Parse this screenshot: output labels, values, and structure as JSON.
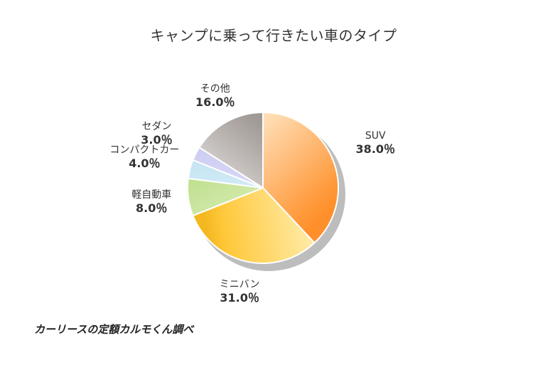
{
  "chart_data": {
    "type": "pie",
    "title": "キャンプに乗って行きたい車のタイプ",
    "slices": [
      {
        "label": "SUV",
        "value": 38.0,
        "display": "38.0％",
        "color_start": "#ffe2bd",
        "color_end": "#ff9a3c",
        "color_edge": "#ff8f2a"
      },
      {
        "label": "ミニバン",
        "value": 31.0,
        "display": "31.0％",
        "color_start": "#fff0b8",
        "color_end": "#ffc83a",
        "color_edge": "#f3b820"
      },
      {
        "label": "軽自動車",
        "value": 8.0,
        "display": "8.0％",
        "color_start": "#e4f3c6",
        "color_end": "#bfe08e",
        "color_edge": "#b3d87c"
      },
      {
        "label": "コンパクトカー",
        "value": 4.0,
        "display": "4.0％",
        "color_start": "#e6f4fb",
        "color_end": "#c2e3f2",
        "color_edge": "#b5dcee"
      },
      {
        "label": "セダン",
        "value": 3.0,
        "display": "3.0％",
        "color_start": "#e8e8fb",
        "color_end": "#c9c9f1",
        "color_edge": "#bcbcec"
      },
      {
        "label": "その他",
        "value": 16.0,
        "display": "16.0％",
        "color_start": "#f0eeec",
        "color_end": "#a39c98",
        "color_edge": "#9a928e"
      }
    ],
    "start_angle_deg": 0,
    "direction": "clockwise",
    "legend": "none",
    "shadow_color": "#bbbbbb"
  },
  "footer": {
    "source": "カーリースの定額カルモくん調べ"
  }
}
